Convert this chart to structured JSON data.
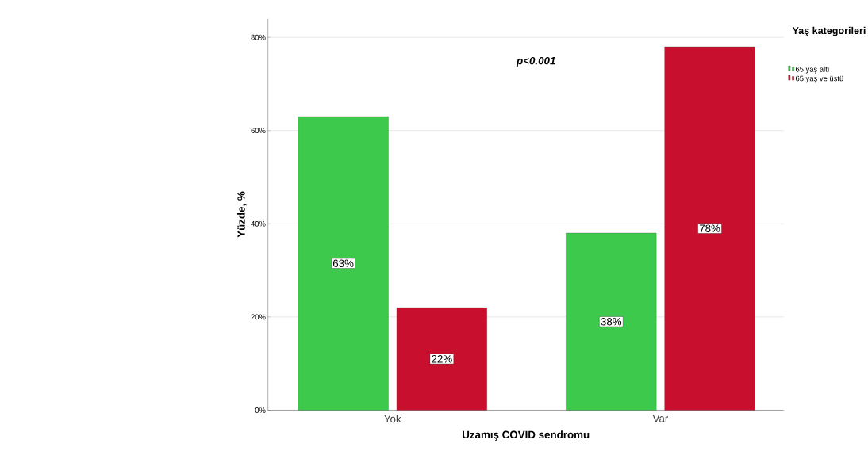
{
  "chart_data": {
    "type": "bar",
    "xlabel": "Uzamış COVID sendromu",
    "ylabel": "Yüzde, %",
    "legend_title": "Yaş kategorileri",
    "annotations": [
      "p<0.001"
    ],
    "categories": [
      "Yok",
      "Var"
    ],
    "series": [
      {
        "name": "65 yaş altı",
        "color": "#3dc94b",
        "values": [
          63,
          38
        ],
        "value_labels": [
          "63%",
          "38%"
        ]
      },
      {
        "name": "65 yaş ve üstü",
        "color": "#c8102e",
        "values": [
          22,
          78
        ],
        "value_labels": [
          "22%",
          "78%"
        ]
      }
    ],
    "ylim": [
      0,
      84
    ],
    "yticks": [
      {
        "value": 0,
        "label": "0%"
      },
      {
        "value": 20,
        "label": "20%"
      },
      {
        "value": 40,
        "label": "40%"
      },
      {
        "value": 60,
        "label": "60%"
      },
      {
        "value": 80,
        "label": "80%"
      }
    ],
    "grid": "y",
    "legend": "top right"
  }
}
